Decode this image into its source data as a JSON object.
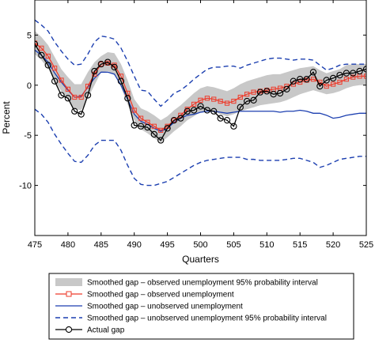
{
  "chart_data": {
    "type": "line",
    "title": "",
    "xlabel": "Quarters",
    "ylabel": "Percent",
    "xlim": [
      475,
      525
    ],
    "ylim": [
      -15,
      8.5
    ],
    "xticks": [
      475,
      480,
      485,
      490,
      495,
      500,
      505,
      510,
      515,
      520,
      525
    ],
    "yticks": [
      -10,
      -5,
      0,
      5
    ],
    "grid": false,
    "legend_position": "bottom",
    "x": [
      475,
      476,
      477,
      478,
      479,
      480,
      481,
      482,
      483,
      484,
      485,
      486,
      487,
      488,
      489,
      490,
      491,
      492,
      493,
      494,
      495,
      496,
      497,
      498,
      499,
      500,
      501,
      502,
      503,
      504,
      505,
      506,
      507,
      508,
      509,
      510,
      511,
      512,
      513,
      514,
      515,
      516,
      517,
      518,
      519,
      520,
      521,
      522,
      523,
      524,
      525
    ],
    "series": [
      {
        "name": "Smoothed gap – observed unemployment 95% probability interval",
        "style": "band",
        "color": "#c8c8c8",
        "lower": [
          3.1,
          2.5,
          1.7,
          0.4,
          -0.6,
          -1.5,
          -2.4,
          -2.5,
          -1.3,
          0.0,
          1.3,
          1.4,
          1.1,
          -0.2,
          -1.9,
          -3.5,
          -4.4,
          -4.8,
          -5.3,
          -5.7,
          -5.2,
          -4.6,
          -4.1,
          -3.5,
          -3.1,
          -2.7,
          -2.5,
          -2.6,
          -2.9,
          -3.1,
          -2.9,
          -2.6,
          -2.4,
          -2.2,
          -2.0,
          -1.9,
          -1.8,
          -1.7,
          -1.5,
          -1.2,
          -0.9,
          -0.7,
          -0.5,
          -0.7,
          -0.9,
          -0.8,
          -0.6,
          -0.3,
          -0.1,
          0.0,
          0.0
        ],
        "upper": [
          5.4,
          4.8,
          4.0,
          2.8,
          1.6,
          0.8,
          0.1,
          0.1,
          1.3,
          2.3,
          2.9,
          3.3,
          3.2,
          2.1,
          0.5,
          -1.4,
          -2.3,
          -2.6,
          -3.0,
          -3.5,
          -3.1,
          -2.5,
          -2.0,
          -1.4,
          -0.8,
          -0.3,
          -0.1,
          -0.2,
          -0.4,
          -0.6,
          -0.3,
          0.1,
          0.4,
          0.6,
          0.8,
          1.0,
          1.1,
          1.1,
          1.3,
          1.5,
          1.7,
          1.8,
          1.9,
          1.5,
          1.2,
          1.4,
          1.6,
          2.0,
          2.1,
          2.1,
          2.1
        ]
      },
      {
        "name": "Smoothed gap – observed unemployment",
        "style": "line-square",
        "color": "#ee3b2b",
        "values": [
          4.2,
          3.7,
          2.9,
          1.7,
          0.5,
          -0.4,
          -1.2,
          -1.2,
          -0.1,
          1.1,
          2.1,
          2.2,
          2.0,
          0.9,
          -0.8,
          -2.5,
          -3.3,
          -3.7,
          -4.1,
          -4.5,
          -4.1,
          -3.5,
          -3.0,
          -2.4,
          -1.9,
          -1.5,
          -1.3,
          -1.4,
          -1.6,
          -1.8,
          -1.6,
          -1.2,
          -0.9,
          -0.7,
          -0.6,
          -0.5,
          -0.4,
          -0.3,
          -0.1,
          0.1,
          0.3,
          0.5,
          0.6,
          0.3,
          -0.1,
          0.1,
          0.3,
          0.6,
          0.8,
          0.9,
          0.9
        ]
      },
      {
        "name": "Smoothed gap – unobserved unemployment",
        "style": "line",
        "color": "#1c3fb0",
        "values": [
          3.5,
          3.0,
          2.3,
          1.2,
          0.3,
          -0.5,
          -1.2,
          -1.1,
          -0.2,
          0.7,
          1.3,
          1.3,
          1.1,
          0.0,
          -1.4,
          -2.9,
          -3.6,
          -3.9,
          -4.3,
          -4.6,
          -4.3,
          -3.7,
          -3.3,
          -3.0,
          -2.9,
          -2.7,
          -2.6,
          -2.6,
          -2.7,
          -2.8,
          -2.7,
          -2.6,
          -2.6,
          -2.6,
          -2.6,
          -2.6,
          -2.6,
          -2.7,
          -2.6,
          -2.6,
          -2.5,
          -2.6,
          -2.8,
          -2.8,
          -3.0,
          -3.3,
          -3.2,
          -3.0,
          -2.9,
          -2.8,
          -2.8
        ]
      },
      {
        "name": "Smoothed gap – unobserved unemployment 95% probability interval",
        "style": "dashed-band",
        "color": "#1c3fb0",
        "lower": [
          -2.4,
          -2.9,
          -3.7,
          -4.9,
          -5.9,
          -6.8,
          -7.6,
          -7.7,
          -7.0,
          -6.0,
          -5.5,
          -5.5,
          -5.5,
          -6.5,
          -8.0,
          -9.3,
          -9.9,
          -10.0,
          -10.0,
          -9.8,
          -9.6,
          -9.2,
          -8.8,
          -8.4,
          -8.0,
          -7.7,
          -7.5,
          -7.4,
          -7.3,
          -7.2,
          -7.2,
          -7.2,
          -7.4,
          -7.4,
          -7.5,
          -7.5,
          -7.5,
          -7.5,
          -7.4,
          -7.3,
          -7.3,
          -7.5,
          -7.7,
          -8.2,
          -8.0,
          -7.7,
          -7.4,
          -7.3,
          -7.2,
          -7.1,
          -7.1
        ],
        "upper": [
          6.5,
          6.0,
          5.4,
          4.3,
          3.4,
          2.6,
          2.0,
          2.1,
          3.1,
          4.3,
          4.9,
          4.8,
          4.6,
          3.7,
          2.4,
          0.9,
          -0.5,
          -0.6,
          -1.4,
          -2.1,
          -1.5,
          -0.8,
          -0.5,
          0.0,
          0.6,
          1.1,
          1.6,
          1.8,
          1.8,
          1.9,
          1.9,
          1.7,
          2.0,
          2.2,
          2.4,
          2.6,
          2.7,
          2.7,
          2.6,
          2.5,
          2.6,
          2.6,
          2.5,
          2.0,
          1.5,
          1.7,
          2.0,
          2.1,
          2.1,
          2.1,
          2.1
        ]
      },
      {
        "name": "Actual gap",
        "style": "line-circle",
        "color": "#000000",
        "values": [
          4.1,
          3.0,
          2.0,
          0.4,
          -1.0,
          -1.3,
          -2.6,
          -2.9,
          -1.0,
          1.4,
          2.1,
          2.3,
          1.8,
          0.4,
          -1.3,
          -4.0,
          -4.1,
          -4.2,
          -4.9,
          -5.5,
          -4.3,
          -3.5,
          -3.3,
          -2.6,
          -2.5,
          -2.1,
          -2.5,
          -2.6,
          -3.3,
          -3.5,
          -4.1,
          -2.2,
          -1.6,
          -1.5,
          -0.7,
          -0.6,
          -0.9,
          -0.8,
          -0.4,
          0.4,
          0.6,
          0.6,
          1.3,
          -0.1,
          0.5,
          0.7,
          1.0,
          1.2,
          1.2,
          1.4,
          1.6
        ]
      }
    ]
  }
}
